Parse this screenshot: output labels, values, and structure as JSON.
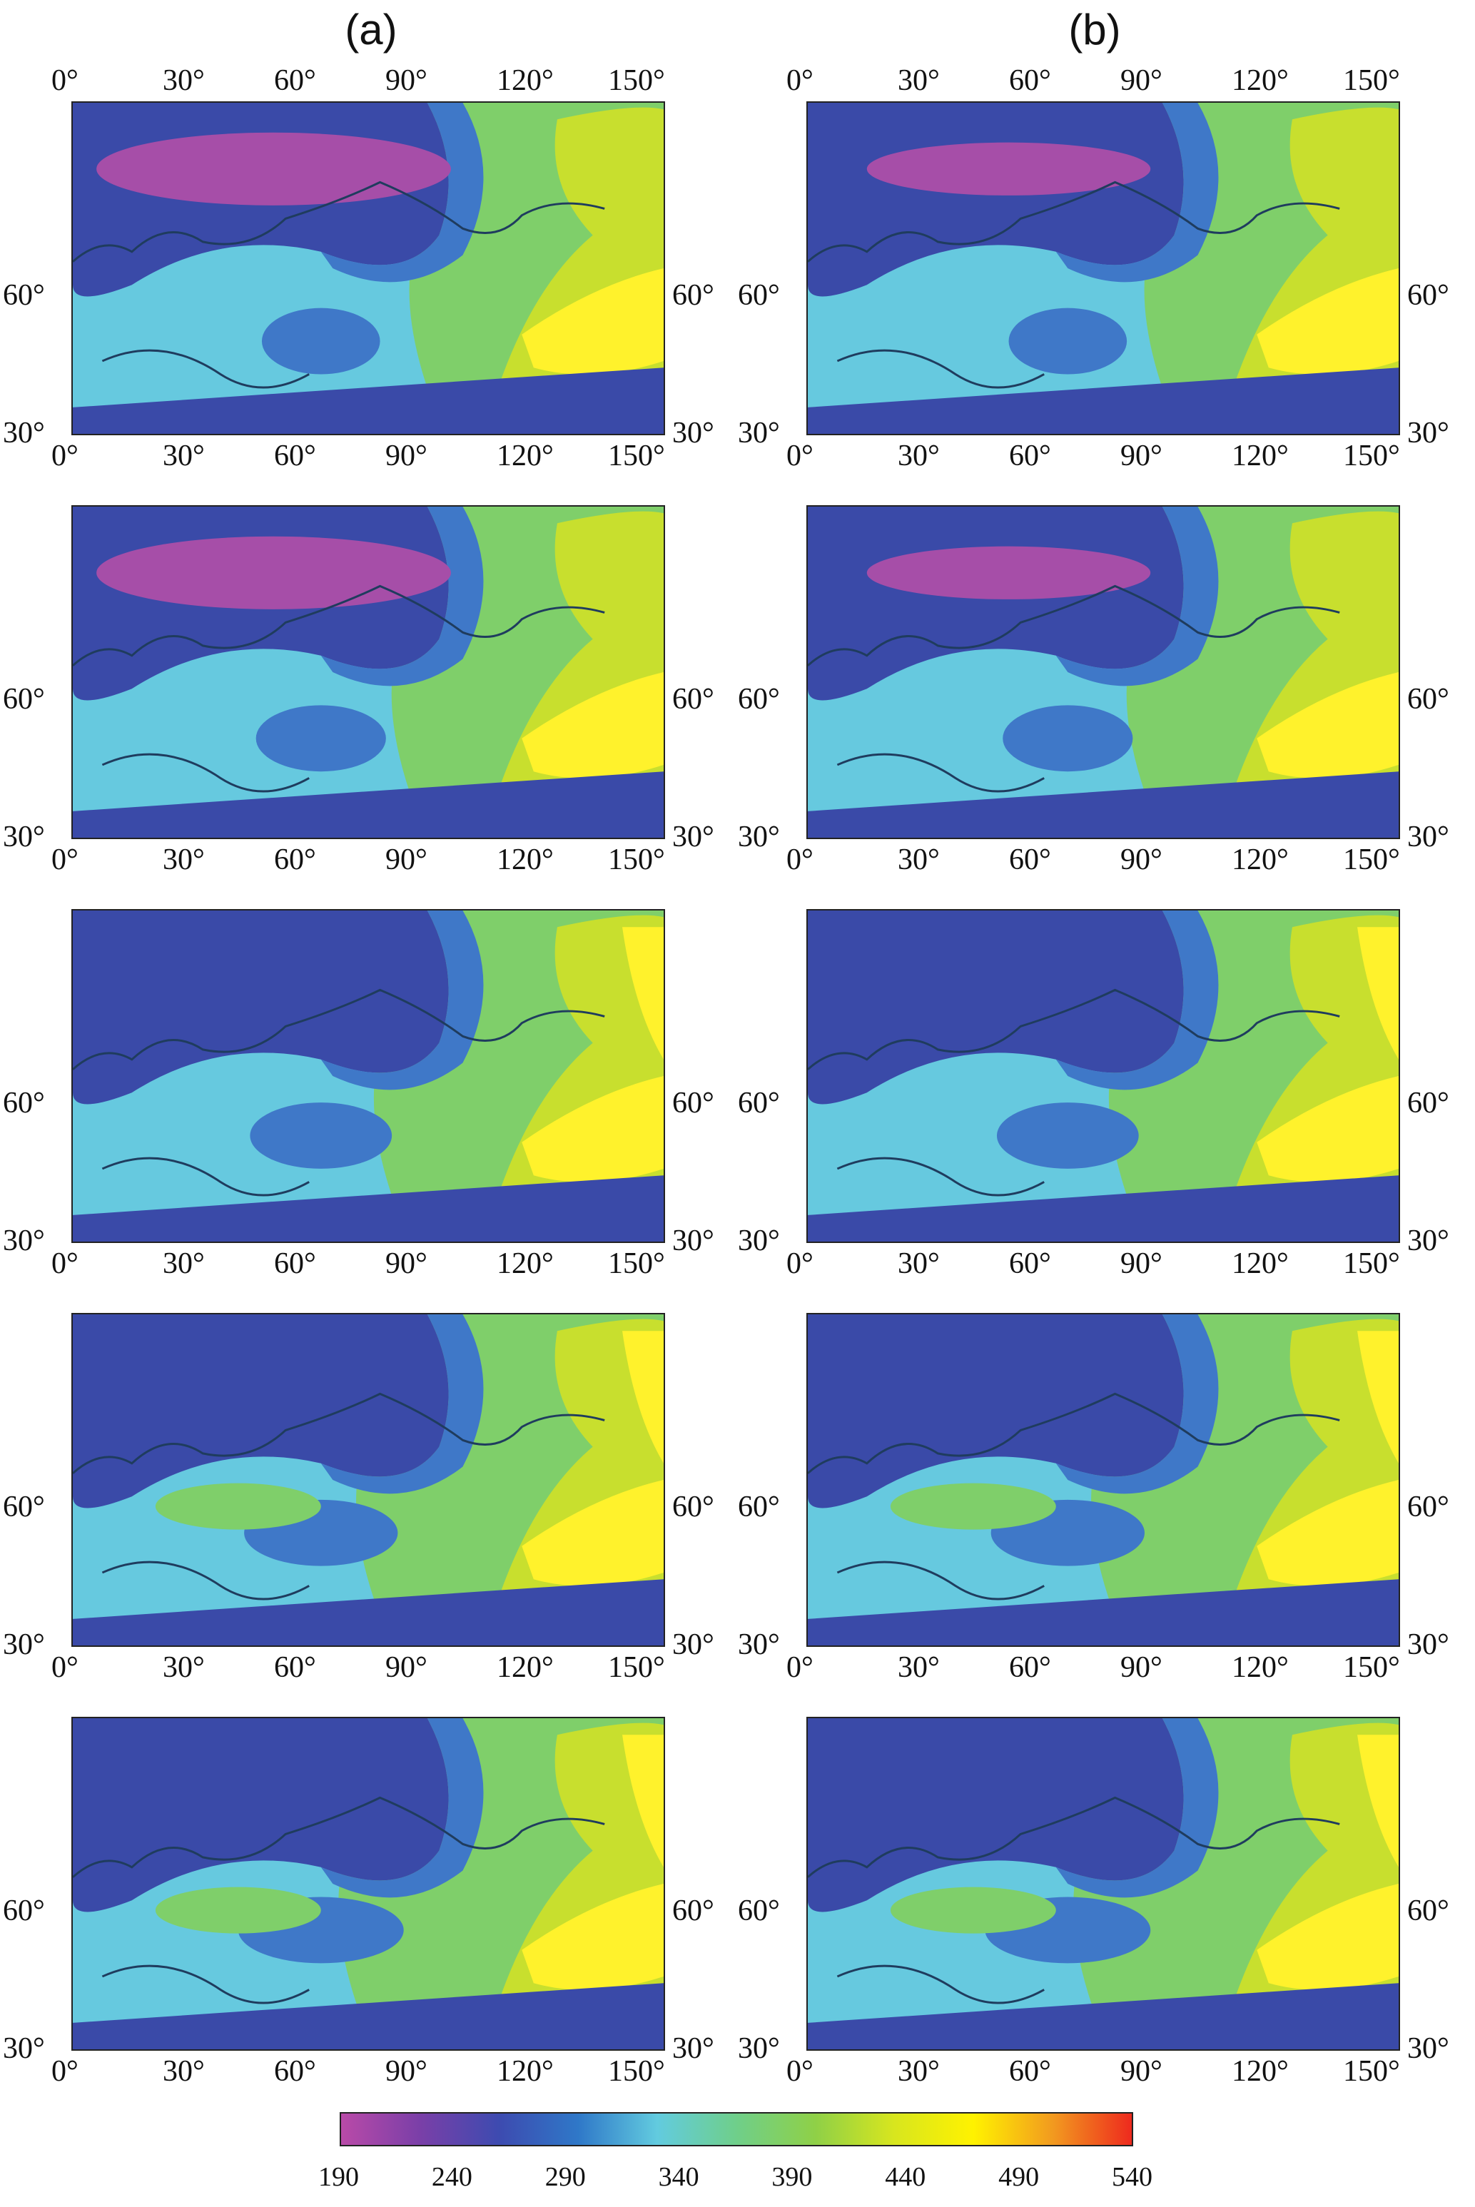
{
  "columns": [
    "(a)",
    "(b)"
  ],
  "longitude_ticks": [
    "0°",
    "30°",
    "60°",
    "90°",
    "120°",
    "150°"
  ],
  "latitude_ticks": [
    "60°",
    "30°"
  ],
  "rows": 5,
  "colorbar": {
    "ticks": [
      "190",
      "240",
      "290",
      "340",
      "390",
      "440",
      "490",
      "540"
    ],
    "colors": [
      "#b94aa8",
      "#7a3fa8",
      "#3d4bb0",
      "#2f78c8",
      "#62cbdf",
      "#6fcf8a",
      "#8fd047",
      "#d8e61e",
      "#fff200",
      "#f29a1f",
      "#ee2a1e"
    ]
  },
  "palette": {
    "magenta": "#a64ea8",
    "navy": "#3a4aa8",
    "blue": "#3f78c8",
    "cyan": "#66c9df",
    "green": "#7fcf6a",
    "yellowgreen": "#c8df2e",
    "yellow": "#fff22c",
    "coast": "#1f3c5e"
  }
}
